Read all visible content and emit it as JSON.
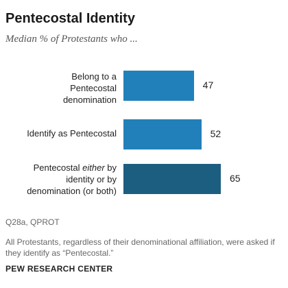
{
  "chart_data": {
    "type": "bar",
    "orientation": "horizontal",
    "title": "Pentecostal Identity",
    "subtitle": "Median % of Protestants who ...",
    "categories": [
      "Belong to a Pentecostal denomination",
      "Identify as Pentecostal",
      "Pentecostal either by identity or by denomination (or both)"
    ],
    "category_lines": [
      [
        "Belong to a",
        "Pentecostal",
        "denomination"
      ],
      [
        "Identify as Pentecostal"
      ],
      [
        "Pentecostal <i>either</i> by",
        "identity or by",
        "denomination (or both)"
      ]
    ],
    "values": [
      47,
      52,
      65
    ],
    "value_labels": [
      "47",
      "52",
      "65"
    ],
    "bar_colors": [
      "#2180b9",
      "#2180b9",
      "#1c5e80"
    ],
    "xlim": [
      0,
      65
    ],
    "grid": false,
    "legend": "none"
  },
  "notes": {
    "source": "Q28a, QPROT",
    "footnote": "All Protestants, regardless of their denominational affiliation, were asked if they identify as “Pentecostal.”"
  },
  "brand": "PEW RESEARCH CENTER"
}
